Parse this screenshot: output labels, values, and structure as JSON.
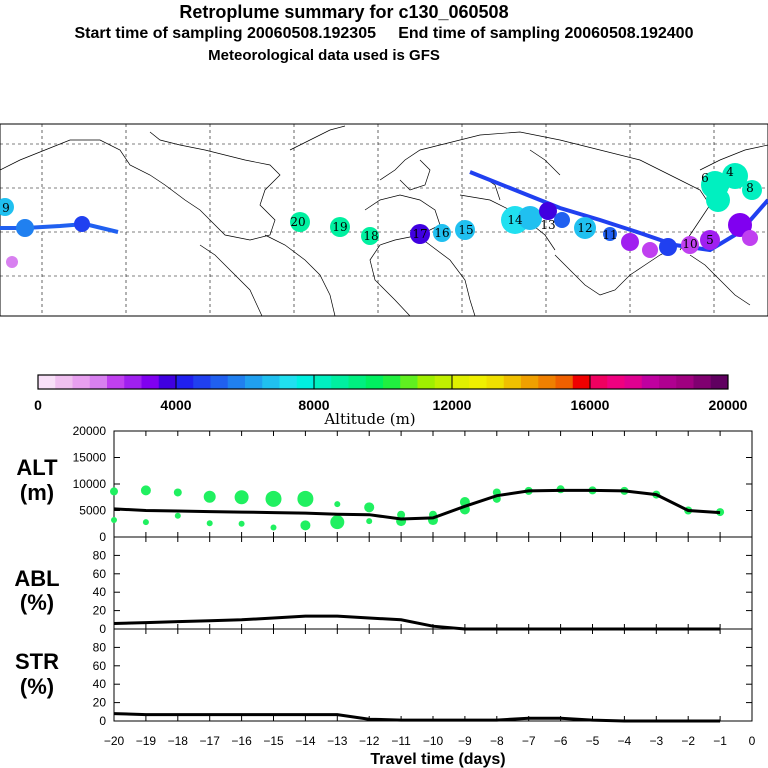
{
  "header": {
    "title": "Retroplume summary for c130_060508",
    "sampling": "Start time of sampling 20060508.192305     End time of sampling 20060508.192400",
    "met": "Meteorological data used is GFS"
  },
  "colorbar": {
    "label": "Altitude (m)",
    "ticks": [
      "0",
      "4000",
      "8000",
      "12000",
      "16000",
      "20000"
    ],
    "colors": [
      "#f8e0f8",
      "#f0c0f0",
      "#e8a0f0",
      "#d880f0",
      "#c040f0",
      "#a020f0",
      "#8000f0",
      "#4000e0",
      "#2020f0",
      "#2040f0",
      "#2060f0",
      "#2080f0",
      "#20a0f0",
      "#20c0f0",
      "#20e0f0",
      "#00f0e0",
      "#00f0c0",
      "#00f0a0",
      "#00f080",
      "#00f060",
      "#20f040",
      "#60f020",
      "#a0f000",
      "#c0f000",
      "#e0f000",
      "#f0f000",
      "#f0e000",
      "#f0c000",
      "#f0a000",
      "#f08000",
      "#f06000",
      "#f00000",
      "#f00060",
      "#f00080",
      "#e00090",
      "#c000a0",
      "#b00090",
      "#a00080",
      "#800070",
      "#600060"
    ]
  },
  "map": {
    "labels": [
      {
        "t": "9",
        "c": "#20c0f0"
      },
      {
        "t": "20",
        "c": "#00f0a0"
      },
      {
        "t": "19",
        "c": "#00f0a0"
      },
      {
        "t": "18",
        "c": "#00f0a0"
      },
      {
        "t": "17",
        "c": "#2020f0"
      },
      {
        "t": "16",
        "c": "#20e0f0"
      },
      {
        "t": "15",
        "c": "#20e0f0"
      },
      {
        "t": "14",
        "c": "#20e0f0"
      },
      {
        "t": "13",
        "c": "#20e0f0"
      },
      {
        "t": "12",
        "c": "#2060f0"
      },
      {
        "t": "11",
        "c": "#d880f0"
      },
      {
        "t": "10",
        "c": "#a020f0"
      },
      {
        "t": "5",
        "c": "#00f0a0"
      },
      {
        "t": "6",
        "c": "#00f0a0"
      },
      {
        "t": "4",
        "c": "#00f0a0"
      },
      {
        "t": "8",
        "c": "#00f0a0"
      }
    ]
  },
  "panels": {
    "alt_label": "ALT",
    "alt_unit": "(m)",
    "abl_label": "ABL",
    "str_label": "STR",
    "pct_unit": "(%)",
    "xlabel": "Travel time (days)",
    "alt_yticks": [
      "20000",
      "15000",
      "10000",
      "5000",
      "0"
    ],
    "pct_yticks": [
      "80",
      "60",
      "40",
      "20",
      "0"
    ],
    "xticks": [
      "−20",
      "−19",
      "−18",
      "−17",
      "−16",
      "−15",
      "−14",
      "−13",
      "−12",
      "−11",
      "−10",
      "−9",
      "−8",
      "−7",
      "−6",
      "−5",
      "−4",
      "−3",
      "−2",
      "−1",
      "0"
    ]
  },
  "chart_data": [
    {
      "type": "line",
      "title": "ALT",
      "ylabel": "(m)",
      "xlabel": "Travel time (days)",
      "xlim": [
        -20,
        0
      ],
      "ylim": [
        0,
        20000
      ],
      "series": [
        {
          "name": "mean altitude",
          "x": [
            -20,
            -19,
            -18,
            -17,
            -16,
            -15,
            -14,
            -13,
            -12,
            -11,
            -10,
            -9,
            -8,
            -7,
            -6,
            -5,
            -4,
            -3,
            -2,
            -1
          ],
          "values": [
            5300,
            5000,
            4900,
            4800,
            4700,
            4600,
            4500,
            4300,
            4200,
            3400,
            3600,
            5800,
            7800,
            8700,
            8800,
            8800,
            8700,
            8000,
            5000,
            4600
          ]
        }
      ],
      "scatter": [
        {
          "x": -20,
          "y": 8600,
          "s": 4
        },
        {
          "x": -20,
          "y": 3200,
          "s": 3
        },
        {
          "x": -19,
          "y": 8800,
          "s": 5
        },
        {
          "x": -19,
          "y": 2800,
          "s": 3
        },
        {
          "x": -18,
          "y": 8400,
          "s": 4
        },
        {
          "x": -18,
          "y": 4000,
          "s": 3
        },
        {
          "x": -17,
          "y": 7600,
          "s": 6
        },
        {
          "x": -17,
          "y": 2600,
          "s": 3
        },
        {
          "x": -16,
          "y": 7500,
          "s": 7
        },
        {
          "x": -16,
          "y": 2500,
          "s": 3
        },
        {
          "x": -15,
          "y": 7200,
          "s": 8
        },
        {
          "x": -15,
          "y": 1800,
          "s": 3
        },
        {
          "x": -14,
          "y": 7200,
          "s": 8
        },
        {
          "x": -14,
          "y": 2200,
          "s": 5
        },
        {
          "x": -13,
          "y": 6200,
          "s": 3
        },
        {
          "x": -13,
          "y": 2800,
          "s": 7
        },
        {
          "x": -12,
          "y": 5600,
          "s": 5
        },
        {
          "x": -12,
          "y": 3000,
          "s": 3
        },
        {
          "x": -11,
          "y": 4200,
          "s": 4
        },
        {
          "x": -11,
          "y": 3000,
          "s": 5
        },
        {
          "x": -10,
          "y": 4200,
          "s": 4
        },
        {
          "x": -10,
          "y": 3200,
          "s": 5
        },
        {
          "x": -9,
          "y": 6600,
          "s": 5
        },
        {
          "x": -9,
          "y": 5200,
          "s": 5
        },
        {
          "x": -8,
          "y": 8400,
          "s": 4
        },
        {
          "x": -8,
          "y": 7200,
          "s": 4
        },
        {
          "x": -7,
          "y": 8700,
          "s": 4
        },
        {
          "x": -6,
          "y": 9000,
          "s": 4
        },
        {
          "x": -5,
          "y": 8800,
          "s": 4
        },
        {
          "x": -4,
          "y": 8700,
          "s": 4
        },
        {
          "x": -3,
          "y": 8000,
          "s": 4
        },
        {
          "x": -2,
          "y": 5000,
          "s": 4
        },
        {
          "x": -1,
          "y": 4700,
          "s": 4
        }
      ]
    },
    {
      "type": "line",
      "title": "ABL",
      "ylabel": "(%)",
      "xlim": [
        -20,
        0
      ],
      "ylim": [
        0,
        100
      ],
      "series": [
        {
          "name": "ABL fraction",
          "x": [
            -20,
            -19,
            -18,
            -17,
            -16,
            -15,
            -14,
            -13,
            -12,
            -11,
            -10,
            -9,
            -8,
            -7,
            -6,
            -5,
            -4,
            -3,
            -2,
            -1
          ],
          "values": [
            6,
            7,
            8,
            9,
            10,
            12,
            14,
            14,
            12,
            10,
            3,
            0,
            0,
            0,
            0,
            0,
            0,
            0,
            0,
            0
          ]
        }
      ]
    },
    {
      "type": "line",
      "title": "STR",
      "ylabel": "(%)",
      "xlim": [
        -20,
        0
      ],
      "ylim": [
        0,
        100
      ],
      "series": [
        {
          "name": "STR fraction",
          "x": [
            -20,
            -19,
            -18,
            -17,
            -16,
            -15,
            -14,
            -13,
            -12,
            -11,
            -10,
            -9,
            -8,
            -7,
            -6,
            -5,
            -4,
            -3,
            -2,
            -1
          ],
          "values": [
            8,
            7,
            7,
            7,
            7,
            7,
            7,
            7,
            2,
            1,
            1,
            1,
            1,
            3,
            3,
            1,
            0,
            0,
            0,
            0
          ]
        }
      ]
    }
  ]
}
